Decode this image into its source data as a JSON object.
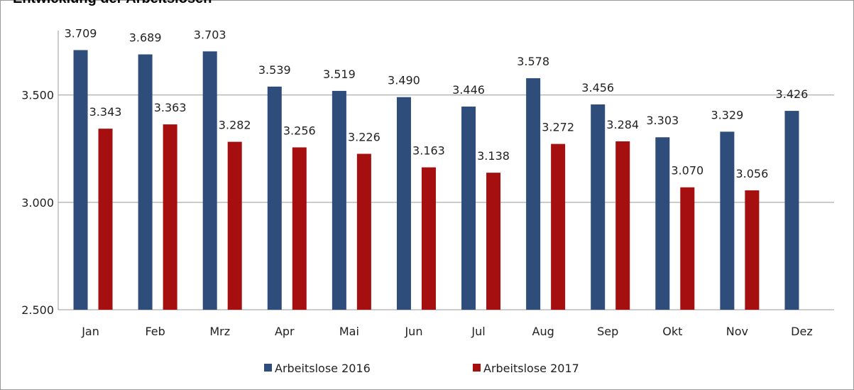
{
  "chart_data": {
    "type": "bar",
    "title": "Entwicklung der Arbeitslosen",
    "categories": [
      "Jan",
      "Feb",
      "Mrz",
      "Apr",
      "Mai",
      "Jun",
      "Jul",
      "Aug",
      "Sep",
      "Okt",
      "Nov",
      "Dez"
    ],
    "series": [
      {
        "name": "Arbeitslose 2016",
        "color": "#2e4d7b",
        "values": [
          3709,
          3689,
          3703,
          3539,
          3519,
          3490,
          3446,
          3578,
          3456,
          3303,
          3329,
          3426
        ],
        "value_labels": [
          "3.709",
          "3.689",
          "3.703",
          "3.539",
          "3.519",
          "3.490",
          "3.446",
          "3.578",
          "3.456",
          "3.303",
          "3.329",
          "3.426"
        ]
      },
      {
        "name": "Arbeitslose 2017",
        "color": "#a50f0f",
        "values": [
          3343,
          3363,
          3282,
          3256,
          3226,
          3163,
          3138,
          3272,
          3284,
          3070,
          3056,
          null
        ],
        "value_labels": [
          "3.343",
          "3.363",
          "3.282",
          "3.256",
          "3.226",
          "3.163",
          "3.138",
          "3.272",
          "3.284",
          "3.070",
          "3.056",
          null
        ]
      }
    ],
    "ylim": [
      2500,
      3800
    ],
    "yticks": [
      {
        "value": 2500,
        "label": "2.500"
      },
      {
        "value": 3000,
        "label": "3.000"
      },
      {
        "value": 3500,
        "label": "3.500"
      }
    ],
    "grid": true,
    "legend": "bottom"
  }
}
